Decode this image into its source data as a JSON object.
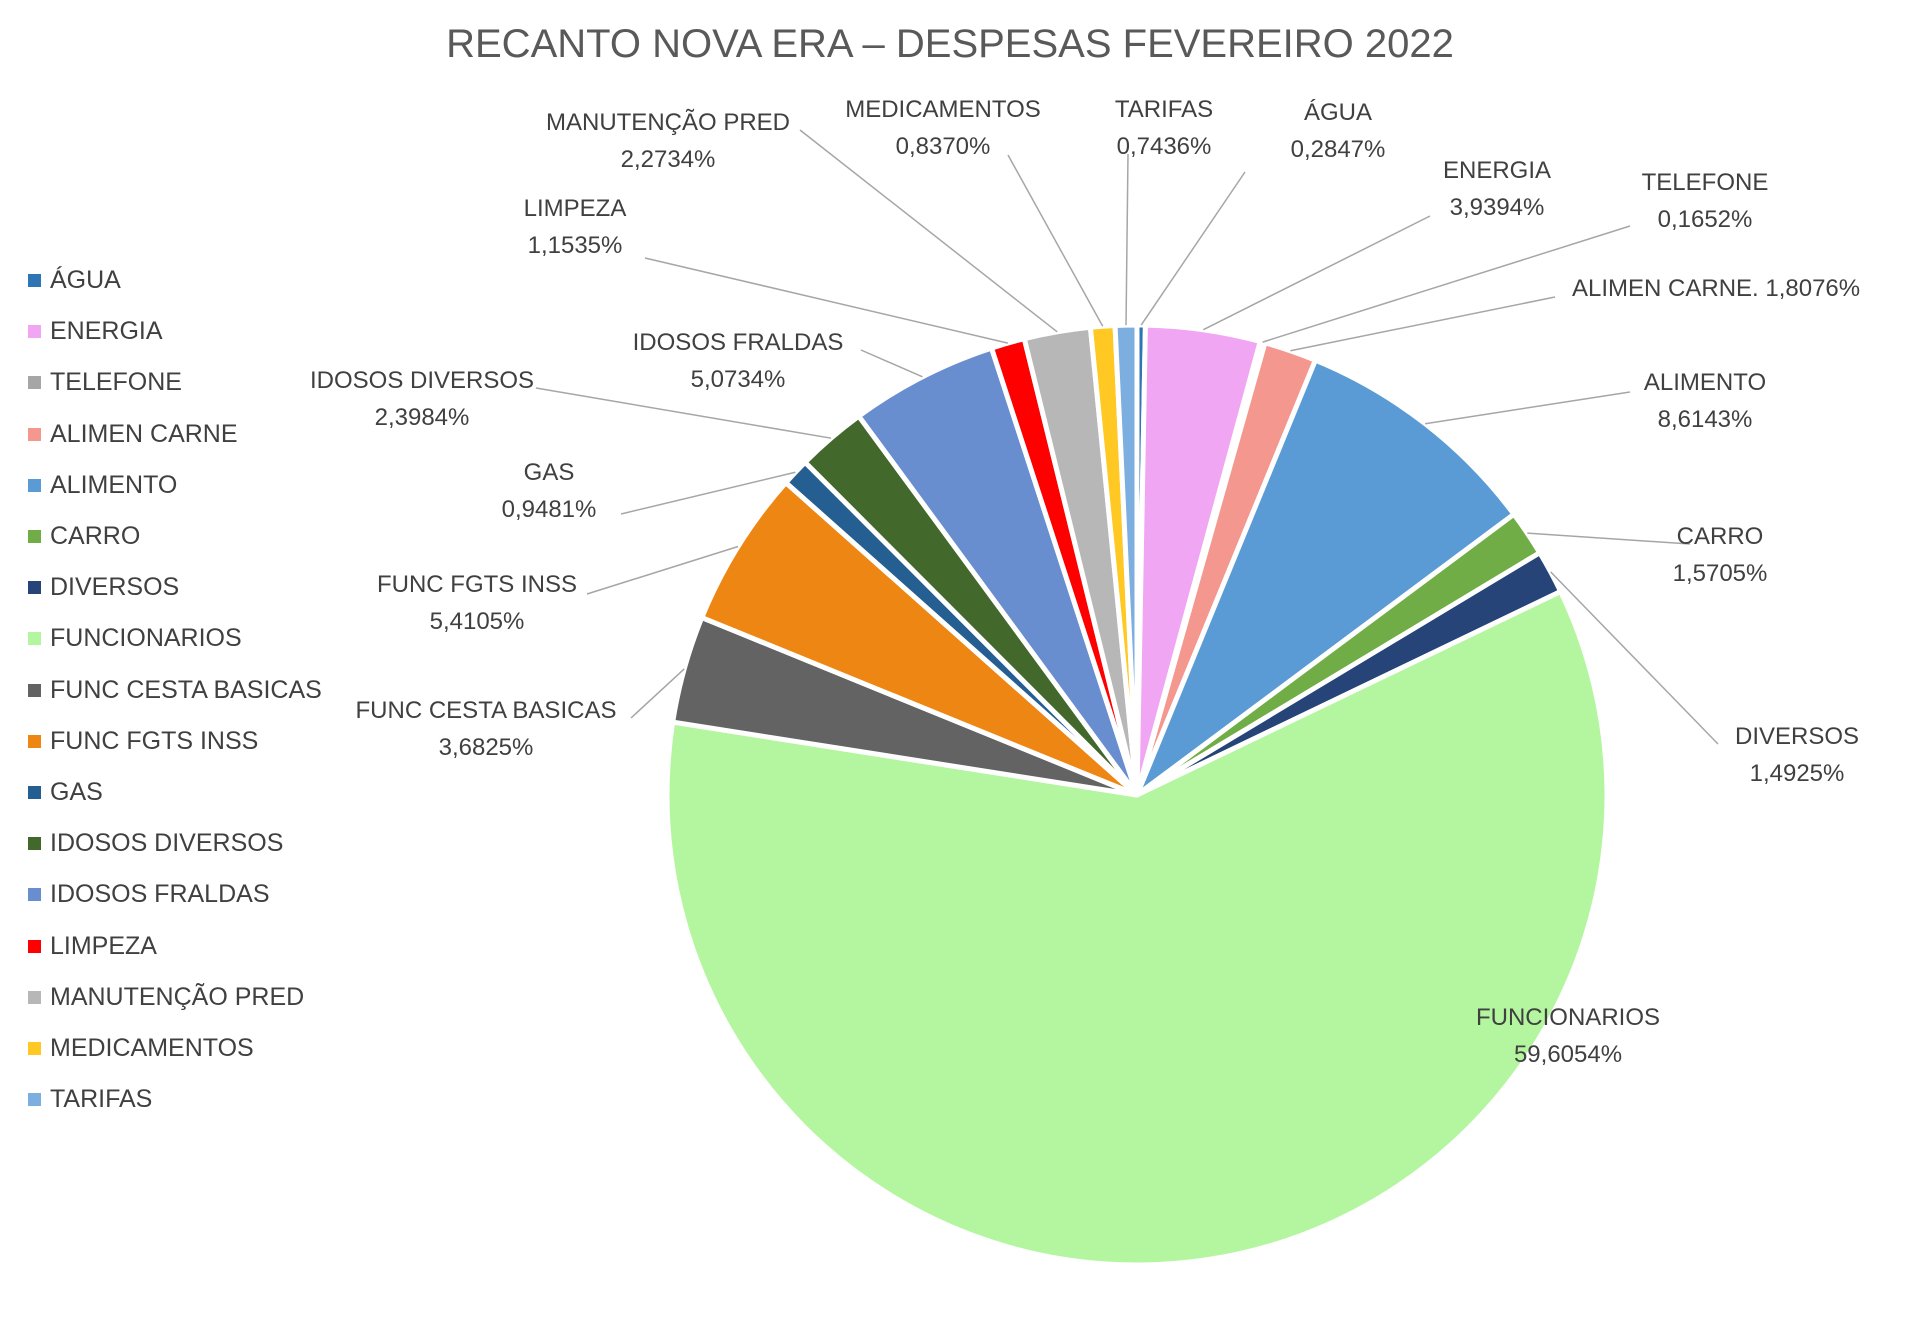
{
  "chart_data": {
    "type": "pie",
    "title": "RECANTO NOVA ERA – DESPESAS FEVEREIRO 2022",
    "legend_position": "left",
    "slices": [
      {
        "name": "ÁGUA",
        "label": "ÁGUA",
        "value": 0.2847,
        "value_label": "0,2847%",
        "color": "#2E75B6"
      },
      {
        "name": "ENERGIA",
        "label": "ENERGIA",
        "value": 3.9394,
        "value_label": "3,9394%",
        "color": "#F0A6F2"
      },
      {
        "name": "TELEFONE",
        "label": "TELEFONE",
        "value": 0.1652,
        "value_label": "0,1652%",
        "color": "#A6A6A6"
      },
      {
        "name": "ALIMEN CARNE",
        "label": "ALIMEN CARNE.",
        "value": 1.8076,
        "value_label": "1,8076%",
        "color": "#F4978E"
      },
      {
        "name": "ALIMENTO",
        "label": "ALIMENTO",
        "value": 8.6143,
        "value_label": "8,6143%",
        "color": "#5B9BD5"
      },
      {
        "name": "CARRO",
        "label": "CARRO",
        "value": 1.5705,
        "value_label": "1,5705%",
        "color": "#70AD47"
      },
      {
        "name": "DIVERSOS",
        "label": "DIVERSOS",
        "value": 1.4925,
        "value_label": "1,4925%",
        "color": "#264478"
      },
      {
        "name": "FUNCIONARIOS",
        "label": "FUNCIONARIOS",
        "value": 59.6054,
        "value_label": "59,6054%",
        "color": "#B4F6A0"
      },
      {
        "name": "FUNC CESTA BASICAS",
        "label": "FUNC CESTA BASICAS",
        "value": 3.6825,
        "value_label": "3,6825%",
        "color": "#636363"
      },
      {
        "name": "FUNC FGTS INSS",
        "label": "FUNC FGTS INSS",
        "value": 5.4105,
        "value_label": "5,4105%",
        "color": "#EE8614"
      },
      {
        "name": "GAS",
        "label": "GAS",
        "value": 0.9481,
        "value_label": "0,9481%",
        "color": "#255E91"
      },
      {
        "name": "IDOSOS DIVERSOS",
        "label": "IDOSOS DIVERSOS",
        "value": 2.3984,
        "value_label": "2,3984%",
        "color": "#43682B"
      },
      {
        "name": "IDOSOS FRALDAS",
        "label": "IDOSOS FRALDAS",
        "value": 5.0734,
        "value_label": "5,0734%",
        "color": "#698ED0"
      },
      {
        "name": "LIMPEZA",
        "label": "LIMPEZA",
        "value": 1.1535,
        "value_label": "1,1535%",
        "color": "#FF0000"
      },
      {
        "name": "MANUTENÇÃO PRED",
        "label": "MANUTENÇÃO PRED",
        "value": 2.2734,
        "value_label": "2,2734%",
        "color": "#B7B7B7"
      },
      {
        "name": "MEDICAMENTOS",
        "label": "MEDICAMENTOS",
        "value": 0.837,
        "value_label": "0,8370%",
        "color": "#FFC823"
      },
      {
        "name": "TARIFAS",
        "label": "TARIFAS",
        "value": 0.7436,
        "value_label": "0,7436%",
        "color": "#7DAEE0"
      }
    ]
  }
}
